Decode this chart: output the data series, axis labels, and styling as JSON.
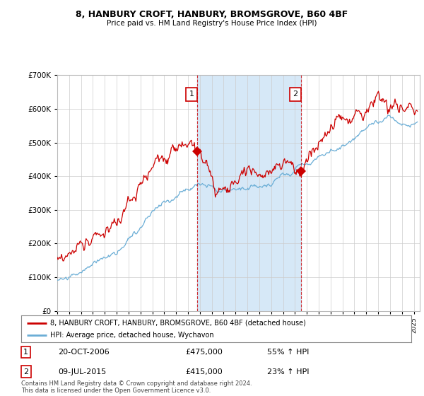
{
  "title": "8, HANBURY CROFT, HANBURY, BROMSGROVE, B60 4BF",
  "subtitle": "Price paid vs. HM Land Registry's House Price Index (HPI)",
  "legend_line1": "8, HANBURY CROFT, HANBURY, BROMSGROVE, B60 4BF (detached house)",
  "legend_line2": "HPI: Average price, detached house, Wychavon",
  "annotation1_label": "1",
  "annotation1_date": "20-OCT-2006",
  "annotation1_price": "£475,000",
  "annotation1_hpi": "55% ↑ HPI",
  "annotation2_label": "2",
  "annotation2_date": "09-JUL-2015",
  "annotation2_price": "£415,000",
  "annotation2_hpi": "23% ↑ HPI",
  "footer": "Contains HM Land Registry data © Crown copyright and database right 2024.\nThis data is licensed under the Open Government Licence v3.0.",
  "hpi_color": "#6baed6",
  "price_color": "#cc0000",
  "sale1_x": 2006.8,
  "sale1_y": 475000,
  "sale2_x": 2015.53,
  "sale2_y": 415000,
  "ylim": [
    0,
    700000
  ],
  "xlim_start": 1995.0,
  "xlim_end": 2025.5,
  "plot_bg": "#ffffff",
  "span_color": "#d6e8f7"
}
